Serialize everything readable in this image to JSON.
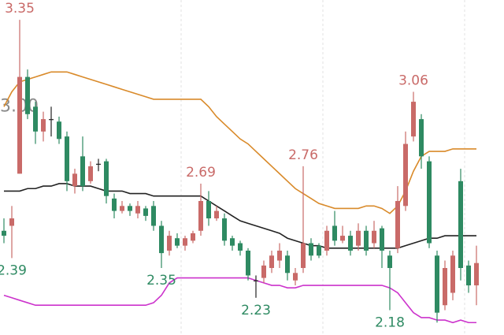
{
  "chart_data": {
    "type": "candlestick",
    "ylim": [
      2.08,
      3.43
    ],
    "yticks": [
      {
        "value": 3,
        "label": "3.00"
      }
    ],
    "grid": false,
    "up_color": "#c96a68",
    "down_color": "#2e8a62",
    "flat_color": "#222222",
    "open": [
      2.5,
      2.52,
      2.73,
      3.12,
      3.0,
      2.9,
      2.95,
      2.94,
      2.88,
      2.68,
      2.8,
      2.7,
      2.77,
      2.78,
      2.63,
      2.58,
      2.6,
      2.57,
      2.59,
      2.6,
      2.52,
      2.42,
      2.47,
      2.44,
      2.46,
      2.5,
      2.62,
      2.55,
      2.55,
      2.47,
      2.45,
      2.42,
      2.3,
      2.31,
      2.35,
      2.38,
      2.4,
      2.3,
      2.35,
      2.45,
      2.44,
      2.42,
      2.52,
      2.46,
      2.48,
      2.44,
      2.5,
      2.45,
      2.51,
      2.4,
      2.43,
      2.6,
      2.88,
      2.95,
      2.78,
      2.4,
      2.2,
      2.25,
      2.7,
      2.36,
      2.28
    ],
    "high": [
      2.55,
      2.6,
      3.35,
      3.15,
      3.02,
      2.98,
      3.0,
      2.96,
      2.9,
      2.75,
      2.88,
      2.78,
      2.79,
      2.79,
      2.65,
      2.62,
      2.61,
      2.62,
      2.6,
      2.62,
      2.54,
      2.5,
      2.49,
      2.48,
      2.5,
      2.69,
      2.66,
      2.6,
      2.57,
      2.48,
      2.46,
      2.43,
      2.32,
      2.38,
      2.42,
      2.45,
      2.42,
      2.35,
      2.76,
      2.47,
      2.45,
      2.52,
      2.58,
      2.52,
      2.5,
      2.53,
      2.52,
      2.54,
      2.52,
      2.42,
      2.68,
      2.9,
      3.06,
      2.97,
      2.8,
      2.42,
      2.38,
      2.42,
      2.75,
      2.38,
      2.44
    ],
    "low": [
      2.45,
      2.39,
      2.73,
      2.95,
      2.85,
      2.86,
      2.88,
      2.85,
      2.66,
      2.65,
      2.66,
      2.69,
      2.74,
      2.61,
      2.55,
      2.57,
      2.56,
      2.55,
      2.54,
      2.5,
      2.35,
      2.4,
      2.43,
      2.42,
      2.45,
      2.48,
      2.52,
      2.54,
      2.44,
      2.42,
      2.4,
      2.3,
      2.23,
      2.29,
      2.33,
      2.35,
      2.3,
      2.28,
      2.33,
      2.38,
      2.39,
      2.4,
      2.44,
      2.45,
      2.4,
      2.42,
      2.4,
      2.43,
      2.35,
      2.18,
      2.41,
      2.58,
      2.86,
      2.75,
      2.43,
      2.13,
      2.18,
      2.22,
      2.3,
      2.25,
      2.2
    ],
    "close": [
      2.48,
      2.55,
      3.12,
      2.97,
      2.9,
      2.95,
      2.95,
      2.87,
      2.7,
      2.73,
      2.68,
      2.76,
      2.77,
      2.64,
      2.58,
      2.6,
      2.58,
      2.6,
      2.56,
      2.52,
      2.41,
      2.48,
      2.44,
      2.47,
      2.49,
      2.62,
      2.55,
      2.58,
      2.46,
      2.44,
      2.42,
      2.32,
      2.3,
      2.36,
      2.4,
      2.42,
      2.33,
      2.33,
      2.45,
      2.4,
      2.4,
      2.5,
      2.46,
      2.48,
      2.42,
      2.5,
      2.42,
      2.5,
      2.42,
      2.35,
      2.62,
      2.85,
      3.02,
      2.8,
      2.45,
      2.17,
      2.35,
      2.4,
      2.35,
      2.28,
      2.37
    ],
    "bands": [
      {
        "color": "#d98a2a",
        "values": [
          3.0,
          3.06,
          3.1,
          3.11,
          3.12,
          3.13,
          3.14,
          3.14,
          3.14,
          3.13,
          3.12,
          3.11,
          3.1,
          3.09,
          3.08,
          3.07,
          3.06,
          3.05,
          3.04,
          3.03,
          3.03,
          3.03,
          3.03,
          3.03,
          3.03,
          3.03,
          3.0,
          2.96,
          2.93,
          2.9,
          2.87,
          2.85,
          2.82,
          2.79,
          2.76,
          2.73,
          2.7,
          2.67,
          2.65,
          2.63,
          2.61,
          2.6,
          2.59,
          2.59,
          2.59,
          2.59,
          2.6,
          2.6,
          2.59,
          2.57,
          2.6,
          2.66,
          2.74,
          2.8,
          2.82,
          2.82,
          2.82,
          2.83,
          2.83,
          2.83,
          2.83
        ]
      },
      {
        "color": "#222222",
        "values": [
          2.66,
          2.66,
          2.66,
          2.67,
          2.67,
          2.68,
          2.68,
          2.69,
          2.69,
          2.68,
          2.68,
          2.68,
          2.67,
          2.66,
          2.66,
          2.66,
          2.65,
          2.65,
          2.65,
          2.64,
          2.64,
          2.64,
          2.64,
          2.64,
          2.64,
          2.64,
          2.62,
          2.6,
          2.58,
          2.56,
          2.54,
          2.53,
          2.52,
          2.51,
          2.5,
          2.49,
          2.47,
          2.46,
          2.45,
          2.44,
          2.44,
          2.43,
          2.43,
          2.43,
          2.43,
          2.43,
          2.43,
          2.43,
          2.43,
          2.43,
          2.43,
          2.44,
          2.45,
          2.46,
          2.47,
          2.47,
          2.48,
          2.48,
          2.48,
          2.48,
          2.48
        ]
      },
      {
        "color": "#cc33cc",
        "values": [
          2.24,
          2.23,
          2.22,
          2.21,
          2.2,
          2.2,
          2.2,
          2.2,
          2.2,
          2.2,
          2.2,
          2.2,
          2.2,
          2.2,
          2.2,
          2.2,
          2.2,
          2.2,
          2.2,
          2.21,
          2.24,
          2.29,
          2.31,
          2.31,
          2.31,
          2.31,
          2.31,
          2.31,
          2.31,
          2.31,
          2.31,
          2.31,
          2.3,
          2.29,
          2.28,
          2.28,
          2.27,
          2.27,
          2.28,
          2.28,
          2.28,
          2.28,
          2.28,
          2.28,
          2.28,
          2.28,
          2.28,
          2.28,
          2.28,
          2.27,
          2.25,
          2.21,
          2.17,
          2.15,
          2.15,
          2.14,
          2.14,
          2.13,
          2.14,
          2.13,
          2.13
        ]
      }
    ],
    "annotations": [
      {
        "index": 2,
        "value": 3.35,
        "side": "high"
      },
      {
        "index": 25,
        "value": 2.69,
        "side": "high"
      },
      {
        "index": 38,
        "value": 2.76,
        "side": "high"
      },
      {
        "index": 52,
        "value": 3.06,
        "side": "high"
      },
      {
        "index": 1,
        "value": 2.39,
        "side": "low"
      },
      {
        "index": 20,
        "value": 2.35,
        "side": "low"
      },
      {
        "index": 32,
        "value": 2.23,
        "side": "low"
      },
      {
        "index": 49,
        "value": 2.18,
        "side": "low"
      }
    ]
  }
}
